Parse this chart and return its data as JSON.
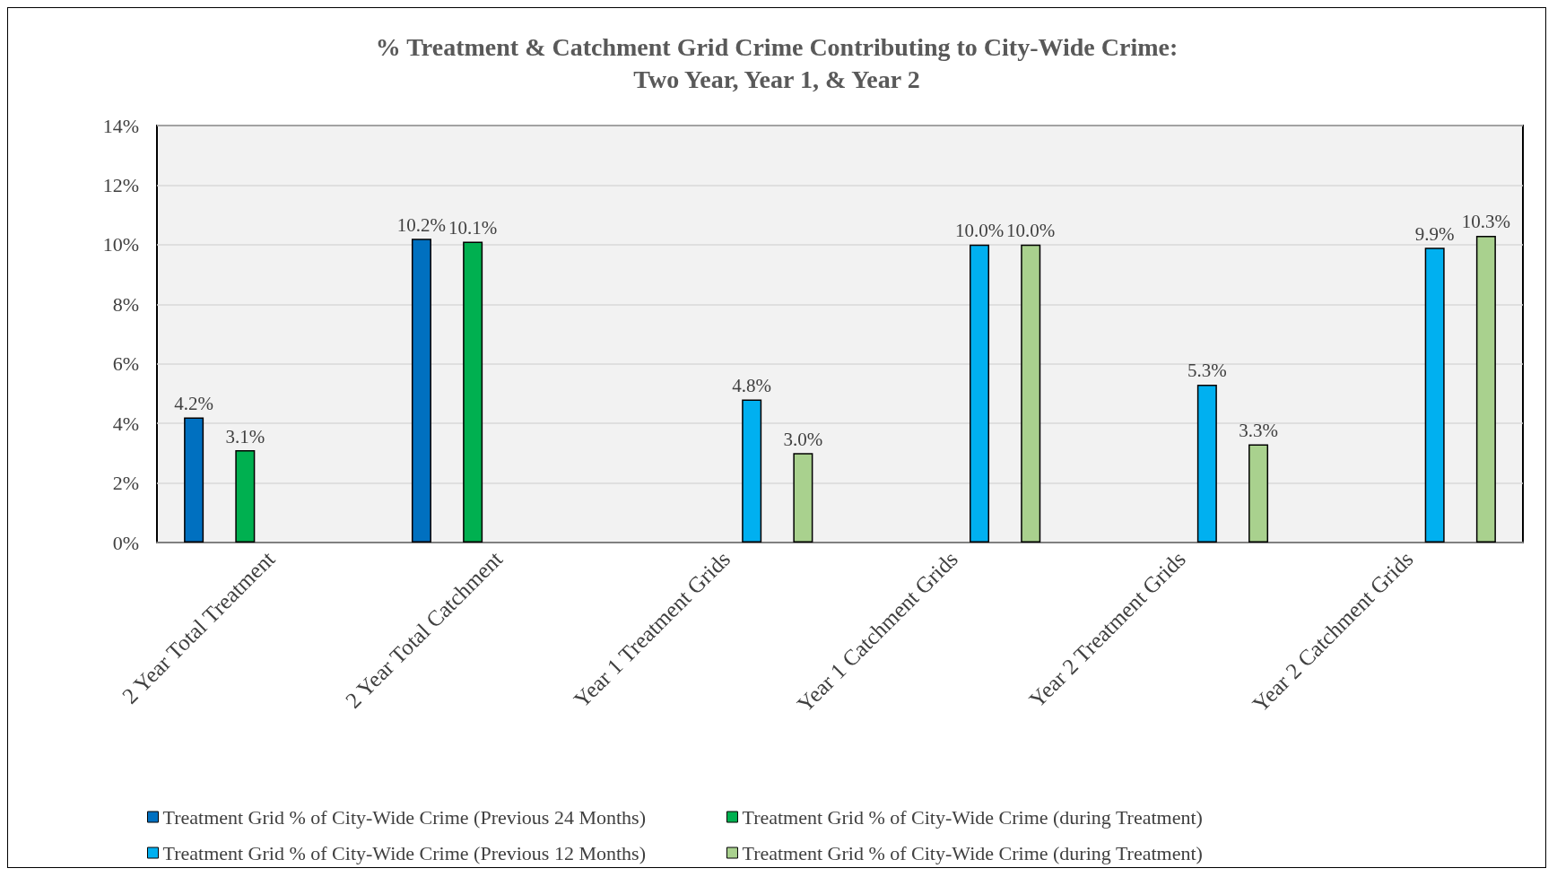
{
  "chart_data": {
    "type": "bar",
    "title": "% Treatment & Catchment Grid Crime Contributing to City-Wide Crime:\nTwo Year, Year 1, & Year 2",
    "categories": [
      "2 Year Total Treatment",
      "2 Year Total Catchment",
      "Year 1 Treatment Grids",
      "Year 1 Catchment Grids",
      "Year 2 Treatment Grids",
      "Year 2 Catchment Grids"
    ],
    "series": [
      {
        "name": "Treatment Grid % of City-Wide Crime (Previous 24 Months)",
        "color": "#0070c0",
        "values": [
          4.2,
          10.2,
          null,
          null,
          null,
          null
        ],
        "value_labels": [
          "4.2%",
          "10.2%",
          null,
          null,
          null,
          null
        ]
      },
      {
        "name": "Treatment Grid % of City-Wide Crime (during Treatment)",
        "color": "#00b050",
        "values": [
          3.1,
          10.1,
          null,
          null,
          null,
          null
        ],
        "value_labels": [
          "3.1%",
          "10.1%",
          null,
          null,
          null,
          null
        ]
      },
      {
        "name": "Treatment Grid % of City-Wide Crime (Previous 12 Months)",
        "color": "#00b0f0",
        "values": [
          null,
          null,
          4.8,
          10.0,
          5.3,
          9.9
        ],
        "value_labels": [
          null,
          null,
          "4.8%",
          "10.0%",
          "5.3%",
          "9.9%"
        ]
      },
      {
        "name": "Treatment Grid % of City-Wide Crime (during Treatment)",
        "color": "#a9d18e",
        "values": [
          null,
          null,
          3.0,
          10.0,
          3.3,
          10.3
        ],
        "value_labels": [
          null,
          null,
          "3.0%",
          "10.0%",
          "3.3%",
          "10.3%"
        ]
      }
    ],
    "ylim": [
      0,
      14
    ],
    "yticks": [
      {
        "value": 0,
        "label": "0%"
      },
      {
        "value": 2,
        "label": "2%"
      },
      {
        "value": 4,
        "label": "4%"
      },
      {
        "value": 6,
        "label": "6%"
      },
      {
        "value": 8,
        "label": "8%"
      },
      {
        "value": 10,
        "label": "10%"
      },
      {
        "value": 12,
        "label": "12%"
      },
      {
        "value": 14,
        "label": "14%"
      }
    ],
    "grid": "y",
    "legend": "bottom"
  }
}
